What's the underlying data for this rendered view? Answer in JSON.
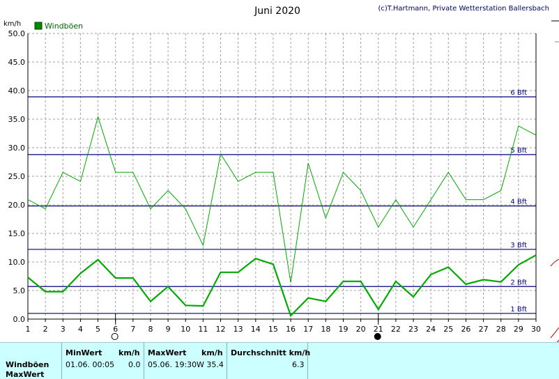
{
  "chart_data": {
    "type": "line",
    "title": "Juni 2020",
    "credit": "(c)T.Hartmann, Private Wetterstation Ballersbach",
    "ylabel": "km/h",
    "ylim": [
      0,
      50
    ],
    "xlim": [
      1,
      30
    ],
    "yticks": [
      "0.0",
      "5.0",
      "10.0",
      "15.0",
      "20.0",
      "25.0",
      "30.0",
      "35.0",
      "40.0",
      "45.0",
      "50.0"
    ],
    "xticks": [
      "1",
      "2",
      "3",
      "4",
      "5",
      "6",
      "7",
      "8",
      "9",
      "10",
      "11",
      "12",
      "13",
      "14",
      "15",
      "16",
      "17",
      "18",
      "19",
      "20",
      "21",
      "22",
      "23",
      "24",
      "25",
      "26",
      "27",
      "28",
      "29",
      "30"
    ],
    "grid": true,
    "legend": [
      {
        "label": "Windböen",
        "color": "#008800"
      }
    ],
    "legend_position": "top-left",
    "x": [
      1,
      2,
      3,
      4,
      5,
      6,
      7,
      8,
      9,
      10,
      11,
      12,
      13,
      14,
      15,
      16,
      17,
      18,
      19,
      20,
      21,
      22,
      23,
      24,
      25,
      26,
      27,
      28,
      29,
      30
    ],
    "series": [
      {
        "name": "Windböen",
        "role": "max",
        "color": "#00aa00",
        "values": [
          20.9,
          19.3,
          25.7,
          24.1,
          35.4,
          25.7,
          25.7,
          19.3,
          22.5,
          19.3,
          12.9,
          28.9,
          24.1,
          25.7,
          25.7,
          6.4,
          27.3,
          17.7,
          25.7,
          22.5,
          16.1,
          20.9,
          16.1,
          20.9,
          25.7,
          20.9,
          20.9,
          22.5,
          33.8,
          32.2
        ]
      },
      {
        "role": "avg",
        "color": "#00aa00",
        "values": [
          7.3,
          4.8,
          4.8,
          8.0,
          10.4,
          7.2,
          7.2,
          3.1,
          5.7,
          2.4,
          2.3,
          8.2,
          8.2,
          10.6,
          9.6,
          0.6,
          3.7,
          3.1,
          6.6,
          6.6,
          1.7,
          6.6,
          3.9,
          7.8,
          9.1,
          6.1,
          6.9,
          6.5,
          9.5,
          11.2
        ]
      }
    ],
    "reference_lines": [
      {
        "label": "1 Bft",
        "value": 1.0
      },
      {
        "label": "2 Bft",
        "value": 5.7
      },
      {
        "label": "3 Bft",
        "value": 12.2
      },
      {
        "label": "4 Bft",
        "value": 19.8
      },
      {
        "label": "5 Bft",
        "value": 28.8
      },
      {
        "label": "6 Bft",
        "value": 38.9
      }
    ],
    "moon_phases": [
      {
        "day": 6,
        "phase": "full-moon"
      },
      {
        "day": 21,
        "phase": "new-moon"
      }
    ]
  },
  "stats": {
    "rows": [
      "Windböen",
      "MaxWert"
    ],
    "min_header": "MinWert",
    "min_unit": "km/h",
    "min_time": "01.06.  00:05",
    "min_value": "0.0",
    "max_header": "MaxWert",
    "max_unit": "km/h",
    "max_time": "05.06.  19:30",
    "max_value": "W 35.4",
    "avg_header": "Durchschnitt km/h",
    "avg_value": "6.3"
  },
  "colors": {
    "line": "#00aa00",
    "bft": "#000080",
    "grid": "#a0a0a0",
    "stats_bg": "#ccffff"
  }
}
